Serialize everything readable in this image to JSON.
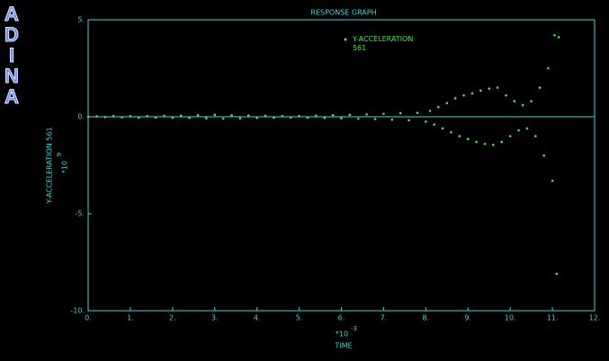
{
  "logo": "ADINA",
  "chart_data": {
    "type": "line",
    "title": "RESPONSE GRAPH",
    "xlabel": "TIME",
    "ylabel": "Y-ACCELERATION 561",
    "x_multiplier": {
      "base": "*10",
      "exponent": "-3"
    },
    "y_multiplier": {
      "base": "*10",
      "exponent": "9"
    },
    "xlim": [
      0,
      12
    ],
    "ylim": [
      -10,
      5
    ],
    "xticks": [
      {
        "value": 0,
        "label": "0."
      },
      {
        "value": 1,
        "label": "1."
      },
      {
        "value": 2,
        "label": "2."
      },
      {
        "value": 3,
        "label": "3."
      },
      {
        "value": 4,
        "label": "4."
      },
      {
        "value": 5,
        "label": "5."
      },
      {
        "value": 6,
        "label": "6."
      },
      {
        "value": 7,
        "label": "7."
      },
      {
        "value": 8,
        "label": "8."
      },
      {
        "value": 9,
        "label": "9."
      },
      {
        "value": 10,
        "label": "10."
      },
      {
        "value": 11,
        "label": "11."
      },
      {
        "value": 12,
        "label": "12."
      }
    ],
    "yticks": [
      {
        "value": -10,
        "label": "-10."
      },
      {
        "value": -5,
        "label": "-5."
      },
      {
        "value": 0,
        "label": "0."
      },
      {
        "value": 5,
        "label": "5."
      }
    ],
    "axis_color": "#4fd0d0",
    "x": [
      0,
      0.2,
      0.4,
      0.6,
      0.8,
      1.0,
      1.2,
      1.4,
      1.6,
      1.8,
      2.0,
      2.2,
      2.4,
      2.6,
      2.8,
      3.0,
      3.2,
      3.4,
      3.6,
      3.8,
      4.0,
      4.2,
      4.4,
      4.6,
      4.8,
      5.0,
      5.2,
      5.4,
      5.6,
      5.8,
      6.0,
      6.2,
      6.4,
      6.6,
      6.8,
      7.0,
      7.2,
      7.4,
      7.6,
      7.8,
      8.0,
      8.1,
      8.2,
      8.3,
      8.4,
      8.5,
      8.6,
      8.7,
      8.8,
      8.9,
      9.0,
      9.1,
      9.2,
      9.3,
      9.4,
      9.5,
      9.6,
      9.7,
      9.8,
      9.9,
      10.0,
      10.1,
      10.2,
      10.3,
      10.4,
      10.5,
      10.6,
      10.7,
      10.8,
      10.9,
      11.0,
      11.05,
      11.1,
      11.15
    ],
    "series": [
      {
        "name": "Y-ACCELERATION 561",
        "color": "#50e050",
        "values": [
          0,
          0.02,
          -0.02,
          0.03,
          -0.03,
          0.03,
          -0.04,
          0.04,
          -0.04,
          0.05,
          -0.05,
          0.06,
          -0.06,
          0.08,
          -0.08,
          0.1,
          -0.1,
          0.08,
          -0.08,
          0.06,
          -0.06,
          0.05,
          -0.05,
          0.04,
          -0.04,
          0.04,
          -0.05,
          0.06,
          -0.06,
          0.08,
          -0.08,
          0.1,
          -0.1,
          0.12,
          -0.12,
          0.15,
          -0.15,
          0.18,
          -0.18,
          0.2,
          -0.25,
          0.3,
          -0.4,
          0.5,
          -0.6,
          0.7,
          -0.8,
          0.95,
          -1.0,
          1.1,
          -1.15,
          1.2,
          -1.3,
          1.35,
          -1.4,
          1.45,
          -1.45,
          1.5,
          -1.3,
          1.1,
          -1.0,
          0.8,
          -0.7,
          0.6,
          -0.6,
          0.8,
          -1.0,
          1.5,
          -2.0,
          2.5,
          -3.3,
          4.2,
          -8.1,
          4.1
        ]
      }
    ]
  }
}
